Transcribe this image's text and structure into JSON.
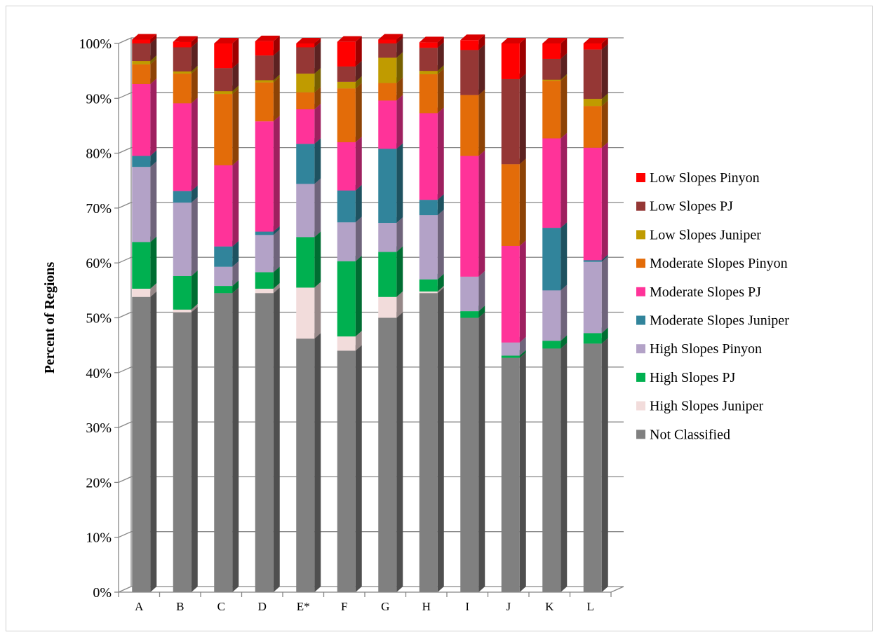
{
  "chart_data": {
    "type": "bar",
    "stacked": true,
    "three_d": true,
    "ylabel": "Percent of Regions",
    "xlabel": "",
    "ylim": [
      0,
      100
    ],
    "y_ticks": [
      "0%",
      "10%",
      "20%",
      "30%",
      "40%",
      "50%",
      "60%",
      "70%",
      "80%",
      "90%",
      "100%"
    ],
    "grid": true,
    "legend_position": "right",
    "categories": [
      "A",
      "B",
      "C",
      "D",
      "E*",
      "F",
      "G",
      "H",
      "I",
      "J",
      "K",
      "L"
    ],
    "series": [
      {
        "name": "Not Classified",
        "color": "#808080",
        "values": [
          53.8,
          51.0,
          54.5,
          54.5,
          46.2,
          44.0,
          50.0,
          54.5,
          50.0,
          42.7,
          44.4,
          45.3
        ]
      },
      {
        "name": "High Slopes Juniper",
        "color": "#f2dcdb",
        "values": [
          1.5,
          0.5,
          0.0,
          0.8,
          9.3,
          2.6,
          3.8,
          0.3,
          0.0,
          0.0,
          0.0,
          0.0
        ]
      },
      {
        "name": "High Slopes PJ",
        "color": "#00b050",
        "values": [
          8.5,
          6.1,
          1.3,
          3.0,
          9.2,
          13.7,
          8.2,
          2.2,
          1.2,
          0.4,
          1.4,
          1.9
        ]
      },
      {
        "name": "High Slopes Pinyon",
        "color": "#b3a2c7",
        "values": [
          13.7,
          13.4,
          3.5,
          6.8,
          9.7,
          7.1,
          5.3,
          11.7,
          6.3,
          2.4,
          9.2,
          13.0
        ]
      },
      {
        "name": "Moderate Slopes Juniper",
        "color": "#31849b",
        "values": [
          2.0,
          2.1,
          3.7,
          0.6,
          7.3,
          5.8,
          13.5,
          2.8,
          0.0,
          0.0,
          11.4,
          0.3
        ]
      },
      {
        "name": "Moderate Slopes PJ",
        "color": "#ff3399",
        "values": [
          13.1,
          16.0,
          14.8,
          20.1,
          6.3,
          8.8,
          8.8,
          15.8,
          22.0,
          17.6,
          16.3,
          20.5
        ]
      },
      {
        "name": "Moderate Slopes Pinyon",
        "color": "#e36c09",
        "values": [
          3.6,
          5.4,
          13.0,
          7.1,
          3.1,
          9.8,
          3.2,
          7.1,
          11.1,
          14.9,
          10.5,
          7.6
        ]
      },
      {
        "name": "Low Slopes Juniper",
        "color": "#c09b00",
        "values": [
          0.6,
          0.4,
          0.5,
          0.4,
          3.4,
          1.2,
          4.6,
          0.6,
          0.0,
          0.0,
          0.2,
          1.3
        ]
      },
      {
        "name": "Low Slopes PJ",
        "color": "#953735",
        "values": [
          3.2,
          4.4,
          4.2,
          4.5,
          4.8,
          2.8,
          2.6,
          4.2,
          8.2,
          15.5,
          3.8,
          9.0
        ]
      },
      {
        "name": "Low Slopes Pinyon",
        "color": "#ff0000",
        "values": [
          0.7,
          1.0,
          4.5,
          2.6,
          0.7,
          4.5,
          0.7,
          1.0,
          1.8,
          6.5,
          2.8,
          1.1
        ]
      }
    ]
  }
}
